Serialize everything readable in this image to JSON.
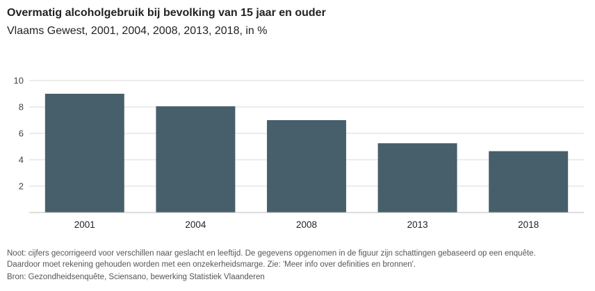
{
  "chart_data": {
    "type": "bar",
    "title": "Overmatig alcoholgebruik bij bevolking van 15 jaar en ouder",
    "subtitle": "Vlaams Gewest, 2001, 2004, 2008, 2013, 2018, in %",
    "categories": [
      "2001",
      "2004",
      "2008",
      "2013",
      "2018"
    ],
    "values": [
      9.0,
      8.05,
      7.0,
      5.25,
      4.65
    ],
    "ylim": [
      0,
      10
    ],
    "yticks": [
      2,
      4,
      6,
      8,
      10
    ],
    "grid": true,
    "bar_color": "#475f6b",
    "grid_color": "#d9d9d9",
    "axis_color": "#bbbbbb"
  },
  "note": {
    "line1": "Noot: cijfers gecorrigeerd voor verschillen naar geslacht en leeftijd. De gegevens opgenomen in de figuur zijn schattingen gebaseerd op een enquête.",
    "line2": "Daardoor moet rekening gehouden worden met een onzekerheidsmarge. Zie: 'Meer info over definities en bronnen'."
  },
  "source": "Bron: Gezondheidsenquête, Sciensano, bewerking Statistiek Vlaanderen"
}
